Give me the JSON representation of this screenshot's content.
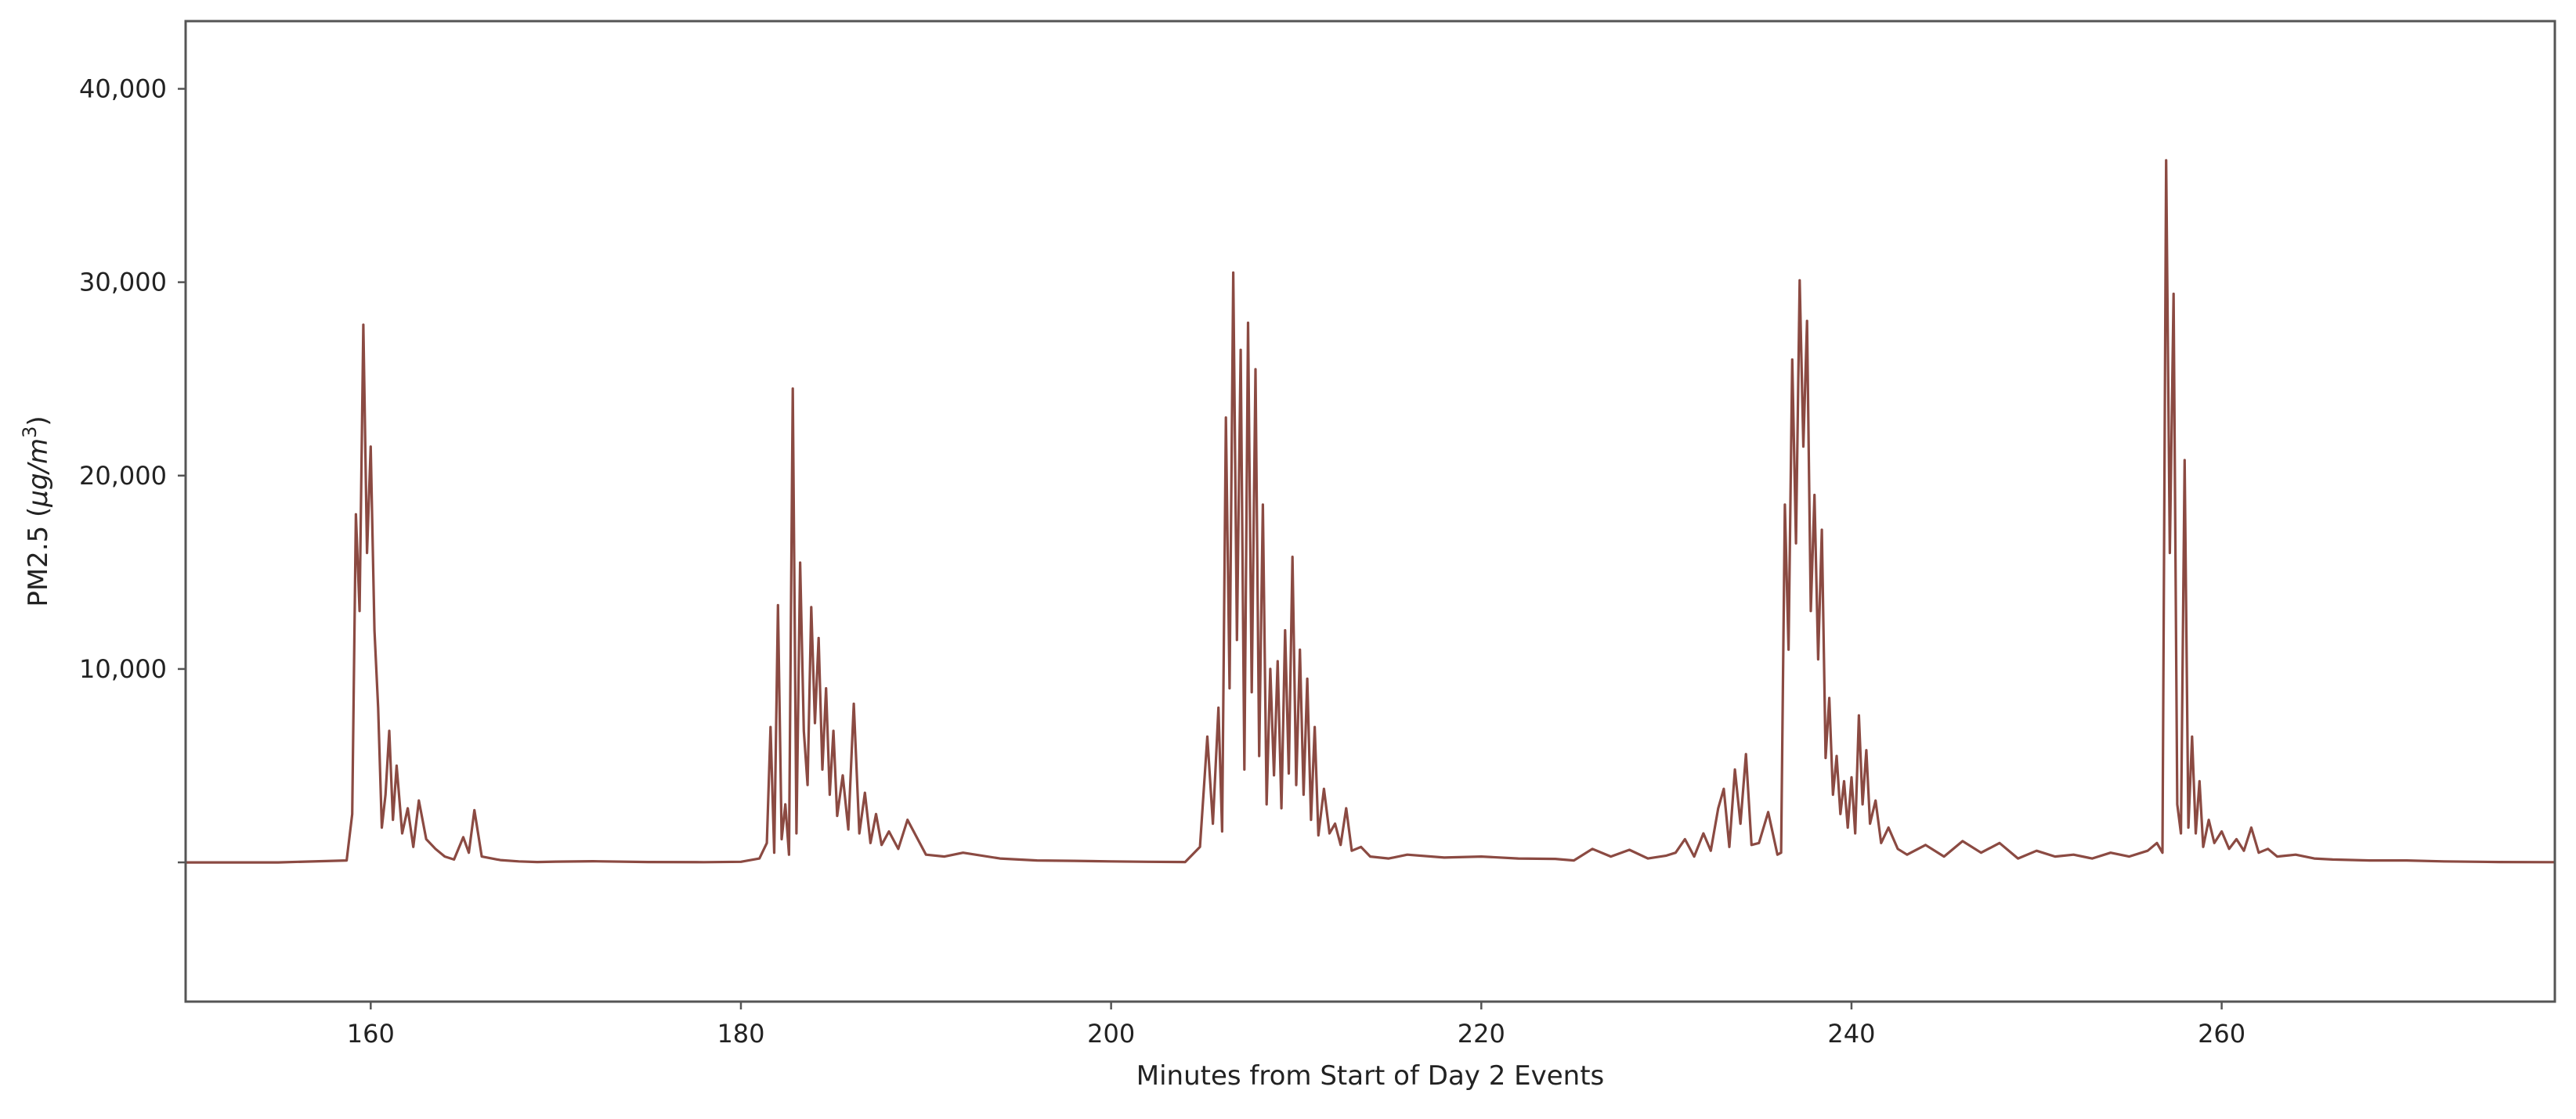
{
  "chart_data": {
    "type": "line",
    "title": "",
    "xlabel": "Minutes from Start of Day 2 Events",
    "ylabel_parts": [
      "PM2.5 (",
      "μg/m",
      "3",
      ")"
    ],
    "xlim": [
      150,
      278
    ],
    "ylim": [
      -7200,
      43500
    ],
    "x_ticks": [
      160,
      180,
      200,
      220,
      240,
      260
    ],
    "x_tick_labels": [
      "160",
      "180",
      "200",
      "220",
      "240",
      "260"
    ],
    "y_ticks": [
      10000,
      20000,
      30000,
      40000
    ],
    "y_tick_labels": [
      "10,000",
      "20,000",
      "30,000",
      "40,000"
    ],
    "grid": false,
    "legend": "none",
    "series": [
      {
        "color": "#8b4a42",
        "x": [
          150,
          155,
          158.7,
          159.0,
          159.2,
          159.4,
          159.6,
          159.8,
          160.0,
          160.2,
          160.4,
          160.6,
          160.8,
          161.0,
          161.2,
          161.4,
          161.7,
          162.0,
          162.3,
          162.6,
          163.0,
          163.5,
          164.0,
          164.5,
          165.0,
          165.3,
          165.6,
          166.0,
          167.0,
          168.0,
          169.0,
          170.0,
          172.0,
          175.0,
          178.0,
          180.0,
          181.0,
          181.4,
          181.6,
          181.8,
          182.0,
          182.2,
          182.4,
          182.6,
          182.8,
          183.0,
          183.2,
          183.4,
          183.6,
          183.8,
          184.0,
          184.2,
          184.4,
          184.6,
          184.8,
          185.0,
          185.2,
          185.5,
          185.8,
          186.1,
          186.4,
          186.7,
          187.0,
          187.3,
          187.6,
          188.0,
          188.5,
          189.0,
          190.0,
          191.0,
          192.0,
          194.0,
          196.0,
          198.0,
          200.0,
          202.0,
          204.0,
          204.8,
          205.2,
          205.5,
          205.8,
          206.0,
          206.2,
          206.4,
          206.6,
          206.8,
          207.0,
          207.2,
          207.4,
          207.6,
          207.8,
          208.0,
          208.2,
          208.4,
          208.6,
          208.8,
          209.0,
          209.2,
          209.4,
          209.6,
          209.8,
          210.0,
          210.2,
          210.4,
          210.6,
          210.8,
          211.0,
          211.2,
          211.5,
          211.8,
          212.1,
          212.4,
          212.7,
          213.0,
          213.5,
          214.0,
          215.0,
          216.0,
          218.0,
          220.0,
          222.0,
          224.0,
          225.0,
          226.0,
          227.0,
          228.0,
          229.0,
          230.0,
          230.5,
          231.0,
          231.5,
          232.0,
          232.4,
          232.8,
          233.1,
          233.4,
          233.7,
          234.0,
          234.3,
          234.6,
          235.0,
          235.5,
          236.0,
          236.2,
          236.4,
          236.6,
          236.8,
          237.0,
          237.2,
          237.4,
          237.6,
          237.8,
          238.0,
          238.2,
          238.4,
          238.6,
          238.8,
          239.0,
          239.2,
          239.4,
          239.6,
          239.8,
          240.0,
          240.2,
          240.4,
          240.6,
          240.8,
          241.0,
          241.3,
          241.6,
          242.0,
          242.5,
          243.0,
          244.0,
          245.0,
          246.0,
          247.0,
          248.0,
          249.0,
          250.0,
          251.0,
          252.0,
          253.0,
          254.0,
          255.0,
          256.0,
          256.5,
          256.8,
          257.0,
          257.2,
          257.4,
          257.6,
          257.8,
          258.0,
          258.2,
          258.4,
          258.6,
          258.8,
          259.0,
          259.3,
          259.6,
          260.0,
          260.4,
          260.8,
          261.2,
          261.6,
          262.0,
          262.5,
          263.0,
          264.0,
          265.0,
          266.0,
          268.0,
          270.0,
          272.0,
          275.0,
          278.0
        ],
        "y": [
          0,
          0,
          100,
          2500,
          18000,
          13000,
          27800,
          16000,
          21500,
          12000,
          8000,
          1800,
          3500,
          6800,
          2200,
          5000,
          1500,
          2800,
          800,
          3200,
          1200,
          700,
          300,
          150,
          1300,
          500,
          2700,
          300,
          120,
          50,
          20,
          40,
          60,
          20,
          10,
          30,
          200,
          1000,
          7000,
          500,
          13300,
          1200,
          3000,
          400,
          24500,
          1500,
          15500,
          6800,
          4000,
          13200,
          7200,
          11600,
          4800,
          9000,
          3500,
          6800,
          2400,
          4500,
          1700,
          8200,
          1500,
          3600,
          1000,
          2500,
          900,
          1600,
          700,
          2200,
          400,
          300,
          500,
          200,
          100,
          80,
          50,
          30,
          20,
          800,
          6500,
          2000,
          8000,
          1600,
          23000,
          9000,
          30500,
          11500,
          26500,
          4800,
          27900,
          8800,
          25500,
          5500,
          18500,
          3000,
          10000,
          4500,
          10400,
          2800,
          12000,
          4600,
          15800,
          4000,
          11000,
          3500,
          9500,
          2200,
          7000,
          1400,
          3800,
          1500,
          2000,
          900,
          2800,
          600,
          800,
          300,
          200,
          400,
          250,
          300,
          200,
          180,
          100,
          700,
          300,
          650,
          200,
          350,
          500,
          1200,
          300,
          1500,
          600,
          2800,
          3800,
          800,
          4800,
          2000,
          5600,
          900,
          1000,
          2600,
          400,
          500,
          18500,
          11000,
          26000,
          16500,
          30100,
          21500,
          28000,
          13000,
          19000,
          10500,
          17200,
          5400,
          8500,
          3500,
          5500,
          2500,
          4200,
          1800,
          4400,
          1500,
          7600,
          3000,
          5800,
          2000,
          3200,
          1000,
          1800,
          700,
          400,
          900,
          300,
          1100,
          500,
          1000,
          200,
          600,
          300,
          400,
          200,
          500,
          300,
          600,
          1000,
          500,
          36300,
          16000,
          29400,
          3000,
          1500,
          20800,
          1800,
          6500,
          1500,
          4200,
          800,
          2200,
          1000,
          1600,
          700,
          1200,
          600,
          1800,
          500,
          700,
          300,
          400,
          200,
          150,
          100,
          100,
          50,
          20,
          10
        ]
      }
    ]
  }
}
